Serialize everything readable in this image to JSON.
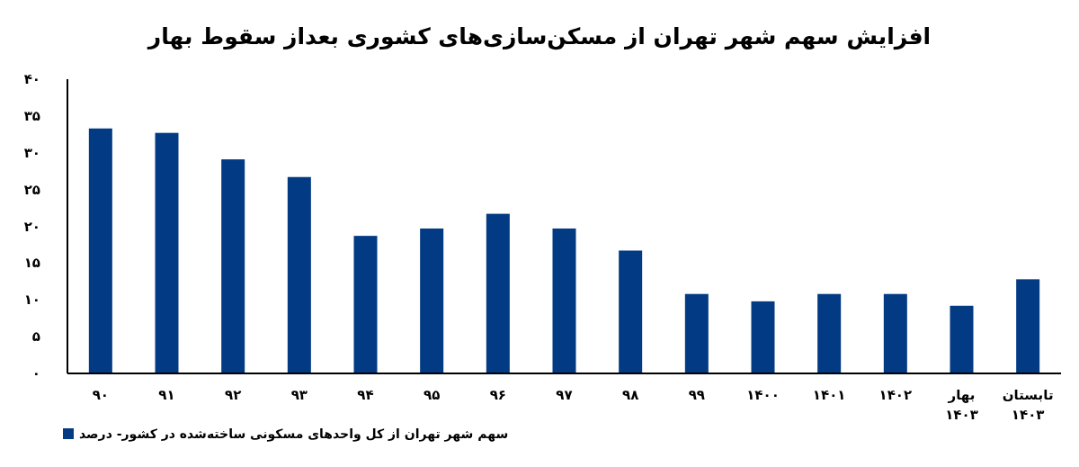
{
  "chart_data": {
    "type": "bar",
    "title": "افزایش سهم شهر تهران از مسکن‌سازی‌های کشوری بعداز سقوط بهار",
    "categories": [
      "۹۰",
      "۹۱",
      "۹۲",
      "۹۳",
      "۹۴",
      "۹۵",
      "۹۶",
      "۹۷",
      "۹۸",
      "۹۹",
      "۱۴۰۰",
      "۱۴۰۱",
      "۱۴۰۲",
      "بهار ۱۴۰۳",
      "تابستان ۱۴۰۳"
    ],
    "series": [
      {
        "name": "سهم شهر تهران از کل واحدهای مسکونی ساخته‌شده در کشور- درصد",
        "color": "#023a84",
        "values": [
          33.3,
          32.7,
          29.1,
          26.7,
          18.7,
          19.7,
          21.7,
          19.7,
          16.7,
          10.8,
          9.8,
          10.8,
          10.8,
          9.2,
          12.8
        ]
      }
    ],
    "ylim": [
      0,
      40
    ],
    "yticks": [
      {
        "value": 0,
        "label": "۰"
      },
      {
        "value": 5,
        "label": "۵"
      },
      {
        "value": 10,
        "label": "۱۰"
      },
      {
        "value": 15,
        "label": "۱۵"
      },
      {
        "value": 20,
        "label": "۲۰"
      },
      {
        "value": 25,
        "label": "۲۵"
      },
      {
        "value": 30,
        "label": "۳۰"
      },
      {
        "value": 35,
        "label": "۳۵"
      },
      {
        "value": 40,
        "label": "۴۰"
      }
    ],
    "legend": "bottom left"
  }
}
